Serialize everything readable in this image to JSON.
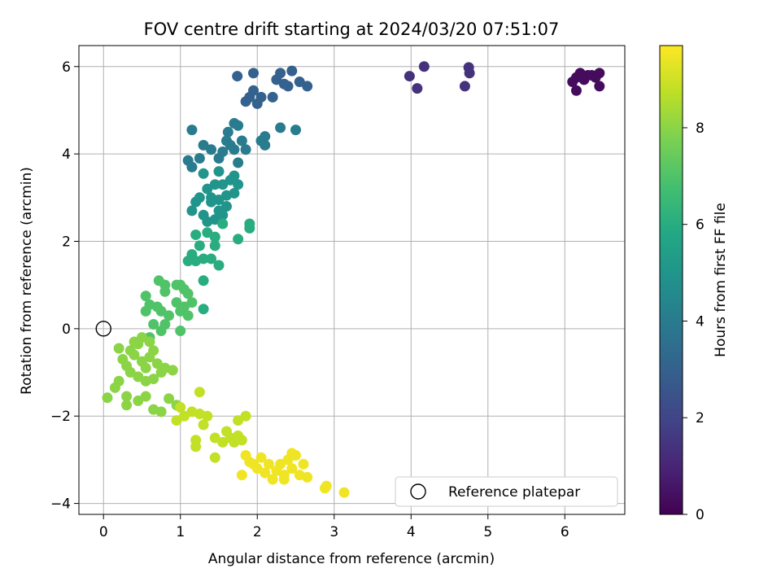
{
  "chart_data": {
    "type": "scatter",
    "title": "FOV centre drift starting at 2024/03/20 07:51:07",
    "xlabel": "Angular distance from reference (arcmin)",
    "ylabel": "Rotation from reference (arcmin)",
    "xlim": [
      -0.32,
      6.78
    ],
    "ylim": [
      -4.25,
      6.48
    ],
    "xticks": [
      0,
      1,
      2,
      3,
      4,
      5,
      6
    ],
    "yticks": [
      -4,
      -2,
      0,
      2,
      4,
      6
    ],
    "grid": true,
    "legend": {
      "placement": "bottom-right",
      "entries": [
        "Reference platepar"
      ]
    },
    "reference_point": {
      "x": 0,
      "y": 0
    },
    "colorbar": {
      "label": "Hours from first FF file",
      "colormap": "viridis",
      "range": [
        0,
        9.7
      ],
      "ticks": [
        0,
        2,
        4,
        6,
        8
      ]
    },
    "series": [
      {
        "hours": 0.3,
        "points": [
          [
            6.1,
            5.65
          ],
          [
            6.15,
            5.75
          ],
          [
            6.2,
            5.85
          ],
          [
            6.25,
            5.7
          ],
          [
            6.3,
            5.8
          ],
          [
            6.35,
            5.8
          ],
          [
            6.4,
            5.75
          ],
          [
            6.45,
            5.85
          ],
          [
            6.45,
            5.55
          ],
          [
            6.15,
            5.45
          ]
        ]
      },
      {
        "hours": 1.4,
        "points": [
          [
            3.98,
            5.78
          ],
          [
            4.08,
            5.5
          ],
          [
            4.17,
            6.0
          ],
          [
            4.7,
            5.55
          ],
          [
            4.75,
            5.98
          ],
          [
            4.76,
            5.85
          ]
        ]
      },
      {
        "hours": 3.0,
        "points": [
          [
            1.74,
            5.78
          ],
          [
            1.95,
            5.85
          ],
          [
            2.3,
            5.85
          ],
          [
            2.45,
            5.9
          ],
          [
            2.55,
            5.65
          ],
          [
            2.65,
            5.55
          ],
          [
            2.35,
            5.6
          ],
          [
            2.25,
            5.7
          ],
          [
            2.2,
            5.3
          ],
          [
            2.05,
            5.3
          ],
          [
            1.95,
            5.45
          ],
          [
            1.9,
            5.3
          ],
          [
            1.85,
            5.2
          ],
          [
            2.0,
            5.15
          ],
          [
            2.4,
            5.55
          ]
        ]
      },
      {
        "hours": 4.0,
        "points": [
          [
            1.15,
            4.55
          ],
          [
            1.62,
            4.5
          ],
          [
            1.7,
            4.7
          ],
          [
            1.75,
            4.65
          ],
          [
            1.8,
            4.3
          ],
          [
            1.85,
            4.1
          ],
          [
            2.05,
            4.3
          ],
          [
            2.1,
            4.4
          ],
          [
            2.1,
            4.2
          ],
          [
            2.3,
            4.6
          ],
          [
            2.5,
            4.55
          ],
          [
            1.65,
            4.2
          ],
          [
            1.7,
            4.1
          ],
          [
            1.55,
            4.05
          ],
          [
            1.4,
            4.1
          ],
          [
            1.3,
            4.2
          ],
          [
            1.25,
            3.9
          ],
          [
            1.1,
            3.85
          ],
          [
            1.15,
            3.7
          ],
          [
            1.5,
            3.9
          ],
          [
            1.75,
            3.8
          ],
          [
            1.6,
            4.3
          ]
        ]
      },
      {
        "hours": 5.0,
        "points": [
          [
            1.3,
            3.55
          ],
          [
            1.5,
            3.6
          ],
          [
            1.55,
            3.3
          ],
          [
            1.65,
            3.4
          ],
          [
            1.7,
            3.5
          ],
          [
            1.75,
            3.3
          ],
          [
            1.7,
            3.1
          ],
          [
            1.6,
            3.05
          ],
          [
            1.45,
            3.3
          ],
          [
            1.35,
            3.2
          ],
          [
            1.25,
            3.0
          ],
          [
            1.2,
            2.9
          ],
          [
            1.4,
            2.9
          ],
          [
            1.5,
            2.7
          ],
          [
            1.55,
            2.6
          ],
          [
            1.6,
            2.8
          ],
          [
            1.45,
            2.5
          ],
          [
            1.35,
            2.45
          ],
          [
            1.3,
            2.6
          ],
          [
            1.15,
            2.7
          ],
          [
            1.4,
            3.0
          ],
          [
            1.5,
            2.95
          ]
        ]
      },
      {
        "hours": 6.0,
        "points": [
          [
            1.35,
            2.2
          ],
          [
            1.2,
            2.15
          ],
          [
            1.25,
            1.9
          ],
          [
            1.1,
            1.55
          ],
          [
            1.15,
            1.7
          ],
          [
            1.3,
            1.6
          ],
          [
            1.45,
            1.9
          ],
          [
            1.5,
            1.45
          ],
          [
            1.4,
            1.6
          ],
          [
            1.2,
            1.55
          ],
          [
            1.9,
            2.4
          ],
          [
            1.9,
            2.3
          ],
          [
            1.75,
            2.05
          ],
          [
            1.3,
            1.1
          ],
          [
            1.3,
            0.45
          ],
          [
            1.55,
            2.4
          ],
          [
            1.45,
            2.1
          ]
        ]
      },
      {
        "hours": 7.0,
        "points": [
          [
            0.72,
            1.1
          ],
          [
            0.8,
            1.0
          ],
          [
            0.8,
            0.85
          ],
          [
            0.95,
            1.0
          ],
          [
            1.0,
            1.0
          ],
          [
            1.05,
            0.9
          ],
          [
            1.1,
            0.8
          ],
          [
            1.15,
            0.6
          ],
          [
            0.55,
            0.75
          ],
          [
            0.6,
            0.55
          ],
          [
            0.55,
            0.4
          ],
          [
            0.7,
            0.5
          ],
          [
            0.75,
            0.4
          ],
          [
            0.85,
            0.3
          ],
          [
            0.95,
            0.6
          ],
          [
            1.0,
            0.4
          ],
          [
            1.1,
            0.3
          ],
          [
            1.05,
            0.5
          ],
          [
            0.65,
            0.1
          ],
          [
            0.8,
            0.1
          ],
          [
            1.0,
            -0.05
          ],
          [
            0.6,
            -0.2
          ],
          [
            0.75,
            -0.05
          ]
        ]
      },
      {
        "hours": 8.0,
        "points": [
          [
            0.2,
            -0.45
          ],
          [
            0.25,
            -0.7
          ],
          [
            0.3,
            -0.85
          ],
          [
            0.35,
            -0.5
          ],
          [
            0.4,
            -0.6
          ],
          [
            0.45,
            -0.35
          ],
          [
            0.5,
            -0.75
          ],
          [
            0.55,
            -0.9
          ],
          [
            0.6,
            -0.65
          ],
          [
            0.65,
            -0.5
          ],
          [
            0.7,
            -0.8
          ],
          [
            0.75,
            -1.0
          ],
          [
            0.8,
            -0.9
          ],
          [
            0.9,
            -0.95
          ],
          [
            0.35,
            -1.0
          ],
          [
            0.45,
            -1.1
          ],
          [
            0.55,
            -1.2
          ],
          [
            0.65,
            -1.15
          ],
          [
            0.2,
            -1.2
          ],
          [
            0.15,
            -1.35
          ],
          [
            0.3,
            -1.55
          ],
          [
            0.3,
            -1.75
          ],
          [
            0.45,
            -1.65
          ],
          [
            0.55,
            -1.55
          ],
          [
            0.65,
            -1.85
          ],
          [
            0.75,
            -1.9
          ],
          [
            0.85,
            -1.6
          ],
          [
            0.95,
            -1.75
          ],
          [
            0.05,
            -1.58
          ],
          [
            0.5,
            -0.2
          ],
          [
            0.4,
            -0.3
          ],
          [
            0.6,
            -0.3
          ]
        ]
      },
      {
        "hours": 8.8,
        "points": [
          [
            1.0,
            -1.8
          ],
          [
            1.05,
            -2.0
          ],
          [
            0.95,
            -2.1
          ],
          [
            1.15,
            -1.9
          ],
          [
            1.25,
            -1.95
          ],
          [
            1.3,
            -2.2
          ],
          [
            1.35,
            -2.0
          ],
          [
            1.25,
            -1.45
          ],
          [
            1.2,
            -2.55
          ],
          [
            1.2,
            -2.7
          ],
          [
            1.45,
            -2.5
          ],
          [
            1.55,
            -2.6
          ],
          [
            1.6,
            -2.35
          ],
          [
            1.65,
            -2.5
          ],
          [
            1.7,
            -2.6
          ],
          [
            1.75,
            -2.45
          ],
          [
            1.8,
            -2.55
          ],
          [
            1.85,
            -2.0
          ],
          [
            1.75,
            -2.1
          ],
          [
            1.45,
            -2.95
          ]
        ]
      },
      {
        "hours": 9.5,
        "points": [
          [
            1.85,
            -2.9
          ],
          [
            1.95,
            -3.1
          ],
          [
            2.05,
            -2.95
          ],
          [
            2.15,
            -3.1
          ],
          [
            2.25,
            -3.25
          ],
          [
            2.35,
            -3.35
          ],
          [
            2.45,
            -3.2
          ],
          [
            2.55,
            -3.35
          ],
          [
            2.65,
            -3.4
          ],
          [
            2.5,
            -2.9
          ],
          [
            2.4,
            -3.0
          ],
          [
            2.3,
            -3.1
          ],
          [
            2.2,
            -3.45
          ],
          [
            2.1,
            -3.3
          ],
          [
            2.0,
            -3.2
          ],
          [
            1.9,
            -3.05
          ],
          [
            1.8,
            -3.35
          ],
          [
            2.35,
            -3.45
          ],
          [
            2.45,
            -2.85
          ],
          [
            2.6,
            -3.1
          ],
          [
            2.88,
            -3.65
          ],
          [
            2.9,
            -3.6
          ],
          [
            3.13,
            -3.75
          ]
        ]
      }
    ]
  }
}
